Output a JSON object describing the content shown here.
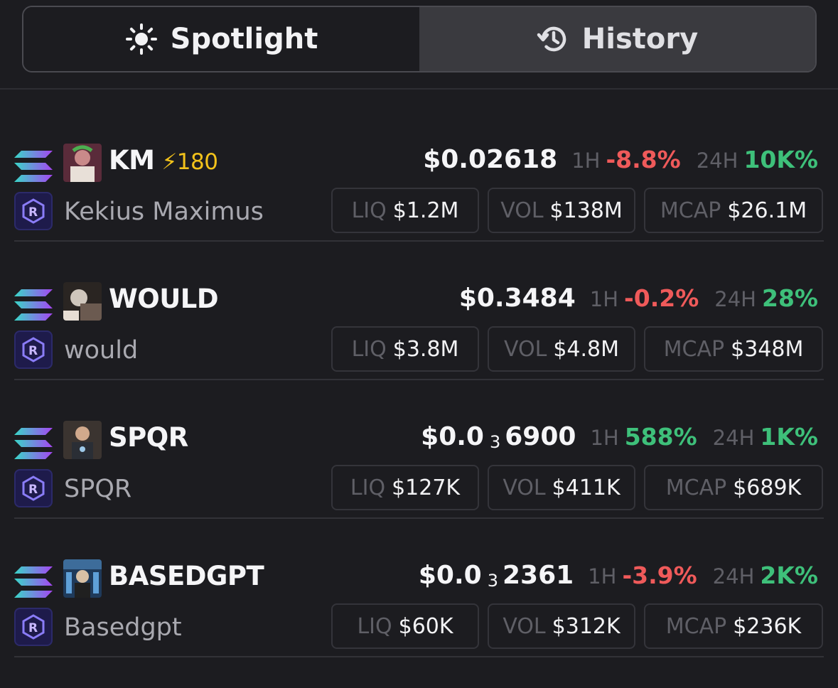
{
  "tabs": {
    "spotlight": "Spotlight",
    "history": "History"
  },
  "labels": {
    "h1": "1H",
    "h24": "24H",
    "liq": "LIQ",
    "vol": "VOL",
    "mcap": "MCAP"
  },
  "colors": {
    "negative": "#ef5a5a",
    "positive": "#3ec07a",
    "boost": "#f2c21b"
  },
  "tokens": [
    {
      "ticker": "KM",
      "boost": "⚡180",
      "name": "Kekius Maximus",
      "price_main": "$0.02618",
      "price_sub": "",
      "price_tail": "",
      "h1": "-8.8%",
      "h1_dir": "neg",
      "h24": "10K%",
      "h24_dir": "pos",
      "liq": "$1.2M",
      "vol": "$138M",
      "mcap": "$26.1M",
      "avatar_icon": "kekius-avatar-icon"
    },
    {
      "ticker": "WOULD",
      "boost": "",
      "name": "would",
      "price_main": "$0.3484",
      "price_sub": "",
      "price_tail": "",
      "h1": "-0.2%",
      "h1_dir": "neg",
      "h24": "28%",
      "h24_dir": "pos",
      "liq": "$3.8M",
      "vol": "$4.8M",
      "mcap": "$348M",
      "avatar_icon": "would-avatar-icon"
    },
    {
      "ticker": "SPQR",
      "boost": "",
      "name": "SPQR",
      "price_main": "$0.0",
      "price_sub": "3",
      "price_tail": "6900",
      "h1": "588%",
      "h1_dir": "pos",
      "h24": "1K%",
      "h24_dir": "pos",
      "liq": "$127K",
      "vol": "$411K",
      "mcap": "$689K",
      "avatar_icon": "spqr-avatar-icon"
    },
    {
      "ticker": "BASEDGPT",
      "boost": "",
      "name": "Basedgpt",
      "price_main": "$0.0",
      "price_sub": "3",
      "price_tail": "2361",
      "h1": "-3.9%",
      "h1_dir": "neg",
      "h24": "2K%",
      "h24_dir": "pos",
      "liq": "$60K",
      "vol": "$312K",
      "mcap": "$236K",
      "avatar_icon": "basedgpt-avatar-icon"
    }
  ]
}
